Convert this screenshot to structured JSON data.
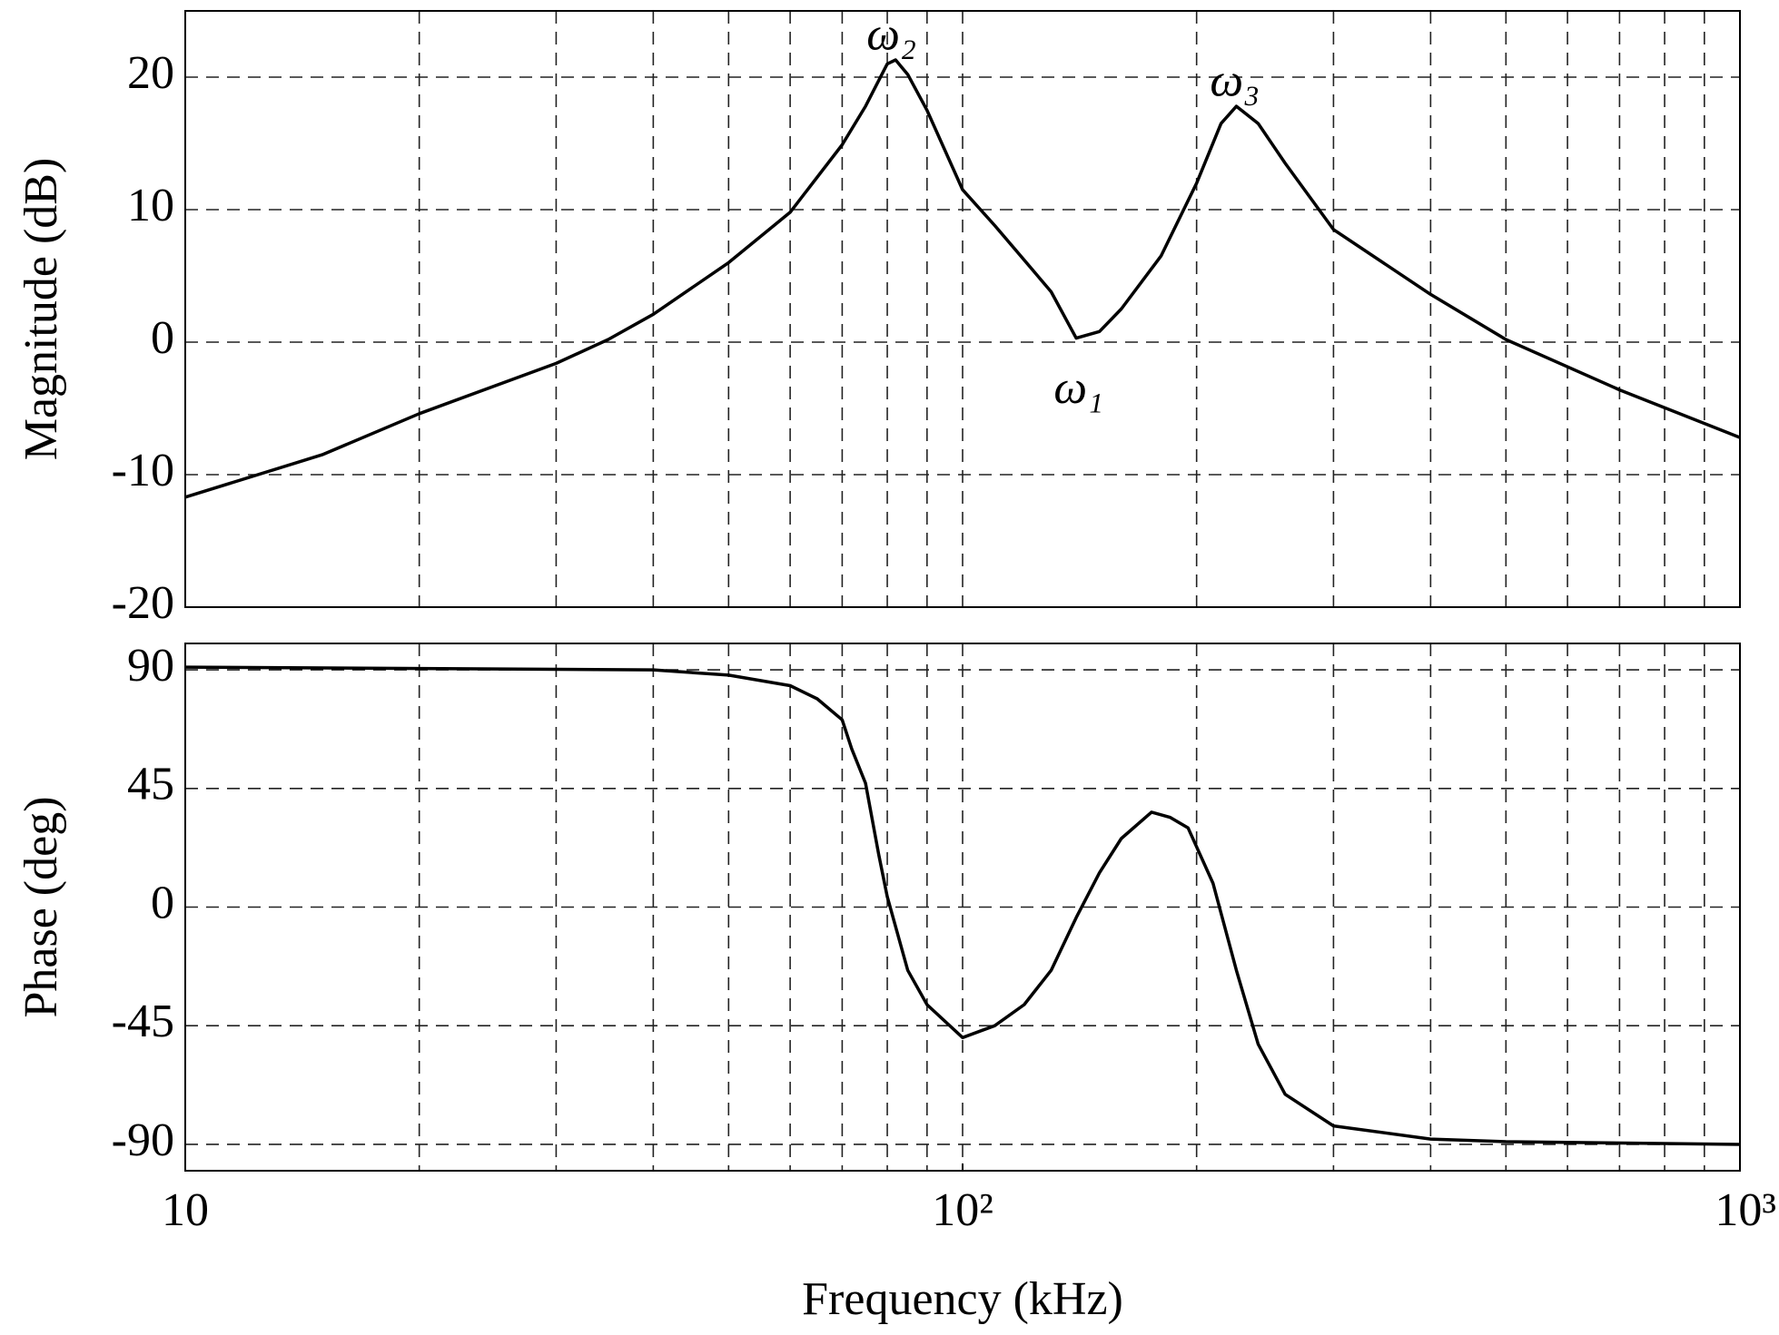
{
  "chart_data": [
    {
      "type": "line",
      "ylabel": "Magnitude (dB)",
      "log_x": true,
      "grid": true,
      "xlim": [
        10,
        1000
      ],
      "ylim": [
        -20,
        25
      ],
      "yticks": [
        -20,
        -10,
        0,
        10,
        20
      ],
      "xgrid": [
        20,
        30,
        40,
        50,
        60,
        70,
        80,
        90,
        100,
        200,
        300,
        400,
        500,
        600,
        700,
        800,
        900
      ],
      "x": [
        10,
        15,
        20,
        30,
        35,
        40,
        50,
        60,
        70,
        75,
        80,
        82,
        85,
        90,
        100,
        110,
        120,
        130,
        140,
        150,
        160,
        180,
        200,
        215,
        225,
        240,
        260,
        300,
        400,
        500,
        700,
        1000
      ],
      "series": [
        {
          "color": "#000000",
          "values": [
            -11.7,
            -8.5,
            -5.4,
            -1.6,
            0.2,
            2.1,
            6.0,
            9.8,
            14.9,
            17.8,
            21.0,
            21.3,
            20.2,
            17.5,
            11.5,
            8.8,
            6.2,
            3.8,
            0.3,
            0.8,
            2.5,
            6.5,
            12.0,
            16.5,
            17.8,
            16.5,
            13.5,
            8.5,
            3.6,
            0.2,
            -3.6,
            -7.2
          ]
        }
      ],
      "annotations": [
        {
          "text": "ω₂",
          "x": 81,
          "y": 21.4
        },
        {
          "text": "ω₃",
          "x": 224,
          "y": 17.9
        },
        {
          "text": "ω₁",
          "x": 141,
          "y": 0.2
        }
      ]
    },
    {
      "type": "line",
      "ylabel": "Phase (deg)",
      "xlabel": "Frequency (kHz)",
      "log_x": true,
      "grid": true,
      "xlim": [
        10,
        1000
      ],
      "ylim": [
        -100,
        100
      ],
      "yticks": [
        -90,
        -45,
        0,
        45,
        90
      ],
      "xticks": [
        10,
        {
          "value": 100,
          "label": "10²"
        },
        {
          "value": 1000,
          "label": "10³"
        }
      ],
      "xgrid": [
        20,
        30,
        40,
        50,
        60,
        70,
        80,
        90,
        100,
        200,
        300,
        400,
        500,
        600,
        700,
        800,
        900
      ],
      "x": [
        10,
        40,
        50,
        60,
        65,
        70,
        72,
        75,
        78,
        80,
        85,
        90,
        100,
        110,
        120,
        130,
        140,
        150,
        160,
        175,
        185,
        195,
        210,
        225,
        240,
        260,
        300,
        400,
        500,
        1000
      ],
      "series": [
        {
          "color": "#000000",
          "values": [
            91,
            90,
            88,
            84,
            79,
            71,
            60,
            47,
            20,
            4,
            -24,
            -37,
            -49.5,
            -45,
            -37,
            -24,
            -4,
            13,
            26,
            36,
            34,
            30,
            9,
            -24,
            -52,
            -71,
            -83,
            -88,
            -89,
            -90
          ]
        }
      ]
    }
  ]
}
